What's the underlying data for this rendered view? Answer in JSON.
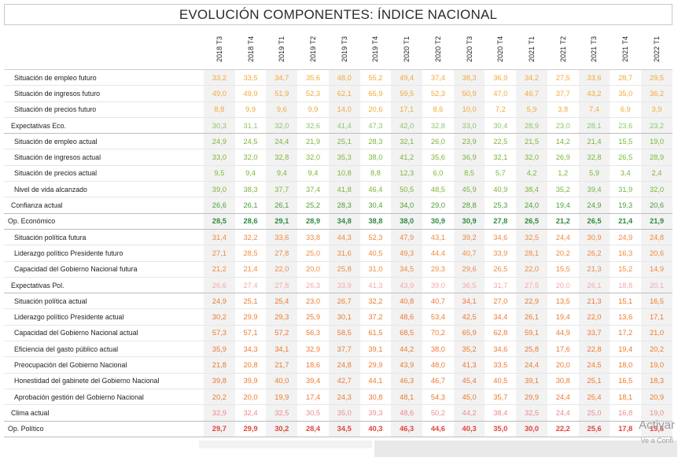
{
  "title": "EVOLUCIÓN COMPONENTES: ÍNDICE NACIONAL",
  "periods": [
    "2018 T3",
    "2018 T4",
    "2019 T1",
    "2019 T2",
    "2019 T3",
    "2019 T4",
    "2020 T1",
    "2020 T2",
    "2020 T3",
    "2020 T4",
    "2021 T1",
    "2021 T2",
    "2021 T3",
    "2021 T4",
    "2022 T1"
  ],
  "rows": [
    {
      "label": "Situación de empleo futuro",
      "level": "sub",
      "color": "#f2a93b",
      "values": [
        "33,2",
        "33,5",
        "34,7",
        "35,6",
        "48,0",
        "55,2",
        "49,4",
        "37,4",
        "38,3",
        "36,9",
        "34,2",
        "27,5",
        "33,6",
        "28,7",
        "29,5"
      ]
    },
    {
      "label": "Situación de ingresos futuro",
      "level": "sub",
      "color": "#f2a93b",
      "values": [
        "49,0",
        "49,9",
        "51,9",
        "52,3",
        "62,1",
        "65,9",
        "59,5",
        "52,3",
        "50,9",
        "47,0",
        "46,7",
        "37,7",
        "43,2",
        "35,0",
        "36,2"
      ]
    },
    {
      "label": "Situación de precios futuro",
      "level": "sub",
      "color": "#f2a93b",
      "values": [
        "8,8",
        "9,9",
        "9,6",
        "9,9",
        "14,0",
        "20,6",
        "17,1",
        "8,6",
        "10,0",
        "7,2",
        "5,9",
        "3,8",
        "7,4",
        "6,9",
        "3,9"
      ]
    },
    {
      "label": "Expectativas Eco.",
      "level": "mid",
      "color": "#8cc66b",
      "values": [
        "30,3",
        "31,1",
        "32,0",
        "32,6",
        "41,4",
        "47,3",
        "42,0",
        "32,8",
        "33,0",
        "30,4",
        "28,9",
        "23,0",
        "28,1",
        "23,6",
        "23,2"
      ]
    },
    {
      "label": "Situación de empleo actual",
      "level": "sub",
      "color": "#7ab63a",
      "values": [
        "24,9",
        "24,5",
        "24,4",
        "21,9",
        "25,1",
        "28,3",
        "32,1",
        "26,0",
        "23,9",
        "22,5",
        "21,5",
        "14,2",
        "21,4",
        "15,5",
        "19,0"
      ]
    },
    {
      "label": "Situación de ingresos actual",
      "level": "sub",
      "color": "#7ab63a",
      "values": [
        "33,0",
        "32,0",
        "32,8",
        "32,0",
        "35,3",
        "38,0",
        "41,2",
        "35,6",
        "36,9",
        "32,1",
        "32,0",
        "26,9",
        "32,8",
        "26,5",
        "28,9"
      ]
    },
    {
      "label": "Situación de precios actual",
      "level": "sub",
      "color": "#7ab63a",
      "values": [
        "9,5",
        "9,4",
        "9,4",
        "9,4",
        "10,8",
        "8,8",
        "12,3",
        "6,0",
        "8,5",
        "5,7",
        "4,2",
        "1,2",
        "5,9",
        "3,4",
        "2,4"
      ]
    },
    {
      "label": "Nivel de vida alcanzado",
      "level": "sub",
      "color": "#7ab63a",
      "values": [
        "39,0",
        "38,3",
        "37,7",
        "37,4",
        "41,8",
        "46,4",
        "50,5",
        "48,5",
        "45,9",
        "40,9",
        "38,4",
        "35,2",
        "39,4",
        "31,9",
        "32,0"
      ]
    },
    {
      "label": "Confianza actual",
      "level": "mid",
      "color": "#4e9e37",
      "values": [
        "26,6",
        "26,1",
        "26,1",
        "25,2",
        "28,3",
        "30,4",
        "34,0",
        "29,0",
        "28,8",
        "25,3",
        "24,0",
        "19,4",
        "24,9",
        "19,3",
        "20,6"
      ]
    },
    {
      "label": "Op. Económico",
      "level": "top",
      "color": "#2f8a3e",
      "values": [
        "28,5",
        "28,6",
        "29,1",
        "28,9",
        "34,8",
        "38,8",
        "38,0",
        "30,9",
        "30,9",
        "27,8",
        "26,5",
        "21,2",
        "26,5",
        "21,4",
        "21,9"
      ]
    },
    {
      "label": "Situación política futura",
      "level": "sub",
      "color": "#ee8a3f",
      "values": [
        "31,4",
        "32,2",
        "33,6",
        "33,8",
        "44,3",
        "52,3",
        "47,9",
        "43,1",
        "39,2",
        "34,6",
        "32,5",
        "24,4",
        "30,9",
        "24,9",
        "24,8"
      ]
    },
    {
      "label": "Liderazgo político Presidente futuro",
      "level": "sub",
      "color": "#ee8a3f",
      "values": [
        "27,1",
        "28,5",
        "27,8",
        "25,0",
        "31,6",
        "40,5",
        "49,3",
        "44,4",
        "40,7",
        "33,9",
        "28,1",
        "20,2",
        "26,2",
        "16,3",
        "20,6"
      ]
    },
    {
      "label": "Capacidad del Gobierno Nacional futura",
      "level": "sub",
      "color": "#ee8a3f",
      "values": [
        "21,2",
        "21,4",
        "22,0",
        "20,0",
        "25,8",
        "31,0",
        "34,5",
        "29,3",
        "29,6",
        "26,5",
        "22,0",
        "15,5",
        "21,3",
        "15,2",
        "14,9"
      ]
    },
    {
      "label": "Expectativas Pol.",
      "level": "mid",
      "color": "#f3a8a8",
      "values": [
        "26,6",
        "27,4",
        "27,8",
        "26,3",
        "33,9",
        "41,3",
        "43,9",
        "39,0",
        "36,5",
        "31,7",
        "27,5",
        "20,0",
        "26,1",
        "18,8",
        "20,1"
      ]
    },
    {
      "label": "Situación política actual",
      "level": "sub",
      "color": "#ec7a2e",
      "values": [
        "24,9",
        "25,1",
        "25,4",
        "23,0",
        "26,7",
        "32,2",
        "40,8",
        "40,7",
        "34,1",
        "27,0",
        "22,9",
        "13,5",
        "21,3",
        "15,1",
        "16,5"
      ]
    },
    {
      "label": "Liderazgo político Presidente actual",
      "level": "sub",
      "color": "#ec7a2e",
      "values": [
        "30,2",
        "29,9",
        "29,3",
        "25,9",
        "30,1",
        "37,2",
        "48,6",
        "53,4",
        "42,5",
        "34,4",
        "26,1",
        "19,4",
        "22,0",
        "13,6",
        "17,1"
      ]
    },
    {
      "label": "Capacidad del Gobierno Nacional actual",
      "level": "sub",
      "color": "#ec7a2e",
      "values": [
        "57,3",
        "57,1",
        "57,2",
        "56,3",
        "58,5",
        "61,5",
        "68,5",
        "70,2",
        "65,9",
        "62,8",
        "59,1",
        "44,9",
        "33,7",
        "17,2",
        "21,0"
      ]
    },
    {
      "label": "Eficiencia del gasto público actual",
      "level": "sub",
      "color": "#ec7a2e",
      "values": [
        "35,9",
        "34,3",
        "34,1",
        "32,9",
        "37,7",
        "39,1",
        "44,2",
        "38,0",
        "35,2",
        "34,6",
        "25,8",
        "17,6",
        "22,8",
        "19,4",
        "20,2"
      ]
    },
    {
      "label": "Preocupación del Gobierno Nacional",
      "level": "sub",
      "color": "#ec7a2e",
      "values": [
        "21,8",
        "20,8",
        "21,7",
        "18,6",
        "24,8",
        "29,9",
        "43,9",
        "48,0",
        "41,3",
        "33,5",
        "24,4",
        "20,0",
        "24,5",
        "18,0",
        "19,0"
      ]
    },
    {
      "label": "Honestidad del gabinete del Gobierno Nacional",
      "level": "sub",
      "color": "#ec7a2e",
      "values": [
        "39,8",
        "39,9",
        "40,0",
        "39,4",
        "42,7",
        "44,1",
        "46,3",
        "46,7",
        "45,4",
        "40,5",
        "39,1",
        "30,8",
        "25,1",
        "16,5",
        "18,3"
      ]
    },
    {
      "label": "Aprobación gestión del Gobierno Nacional",
      "level": "sub",
      "color": "#ec7a2e",
      "values": [
        "20,2",
        "20,0",
        "19,9",
        "17,4",
        "24,3",
        "30,8",
        "48,1",
        "54,3",
        "45,0",
        "35,7",
        "29,9",
        "24,4",
        "25,4",
        "18,1",
        "20,9"
      ]
    },
    {
      "label": "Clima actual",
      "level": "mid",
      "color": "#ee8a8a",
      "values": [
        "32,9",
        "32,4",
        "32,5",
        "30,5",
        "35,0",
        "39,3",
        "48,6",
        "50,2",
        "44,2",
        "38,4",
        "32,5",
        "24,4",
        "25,0",
        "16,8",
        "19,0"
      ]
    },
    {
      "label": "Op. Político",
      "level": "top",
      "color": "#e0443c",
      "values": [
        "29,7",
        "29,9",
        "30,2",
        "28,4",
        "34,5",
        "40,3",
        "46,3",
        "44,6",
        "40,3",
        "35,0",
        "30,0",
        "22,2",
        "25,6",
        "17,8",
        "19,6"
      ]
    }
  ],
  "watermark": {
    "line1": "Activar",
    "line2": "Ve a Confi"
  }
}
